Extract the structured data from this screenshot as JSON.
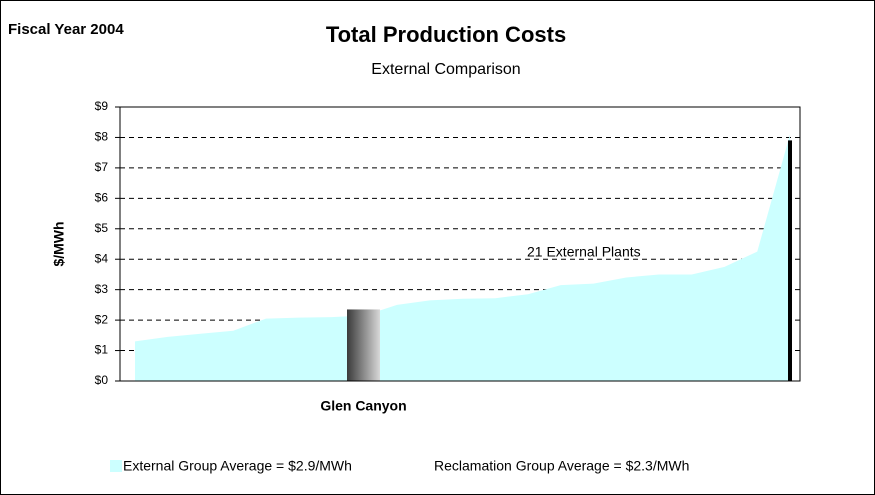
{
  "chart_data": {
    "type": "area",
    "corner_label": "Fiscal Year 2004",
    "title": "Total Production Costs",
    "subtitle": "External Comparison",
    "ylabel": "$/MWh",
    "annotation": "21 External Plants",
    "series": [
      {
        "name": "External Group Average = $2.9/MWh",
        "color": "#ccffff",
        "values": [
          1.3,
          1.45,
          1.55,
          1.65,
          2.05,
          2.08,
          2.1,
          2.15,
          2.5,
          2.65,
          2.7,
          2.72,
          2.85,
          3.15,
          3.2,
          3.4,
          3.5,
          3.5,
          3.75,
          4.25,
          8.1
        ]
      }
    ],
    "highlight": {
      "name": "Glen Canyon",
      "value": 2.35
    },
    "reference_note": "Reclamation Group Average = $2.3/MWh",
    "ylim": [
      0,
      9
    ],
    "yticks": [
      {
        "value": 0,
        "label": "$0"
      },
      {
        "value": 1,
        "label": "$1"
      },
      {
        "value": 2,
        "label": "$2"
      },
      {
        "value": 3,
        "label": "$3"
      },
      {
        "value": 4,
        "label": "$4"
      },
      {
        "value": 5,
        "label": "$5"
      },
      {
        "value": 6,
        "label": "$6"
      },
      {
        "value": 7,
        "label": "$7"
      },
      {
        "value": 8,
        "label": "$8"
      },
      {
        "value": 9,
        "label": "$9"
      }
    ],
    "grid": true
  }
}
